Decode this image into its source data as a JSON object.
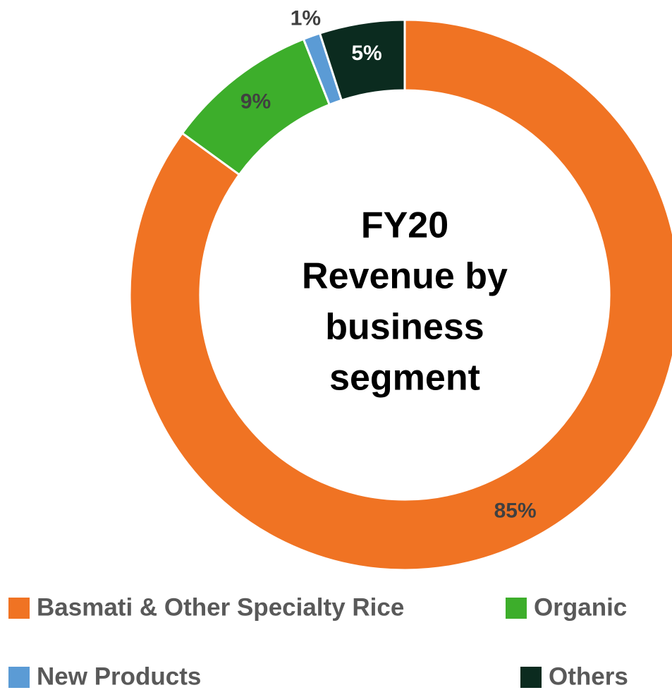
{
  "chart_data": {
    "type": "donut",
    "title": [
      "FY20",
      "Revenue by",
      "business",
      "segment"
    ],
    "categories": [
      "Basmati & Other Specialty Rice",
      "Organic",
      "New Products",
      "Others"
    ],
    "values": [
      85,
      9,
      1,
      5
    ],
    "value_labels": [
      "85%",
      "9%",
      "1%",
      "5%"
    ],
    "colors": [
      "#f07323",
      "#3dae2b",
      "#5b9bd5",
      "#0b2b1f"
    ],
    "legend": "bottom"
  }
}
